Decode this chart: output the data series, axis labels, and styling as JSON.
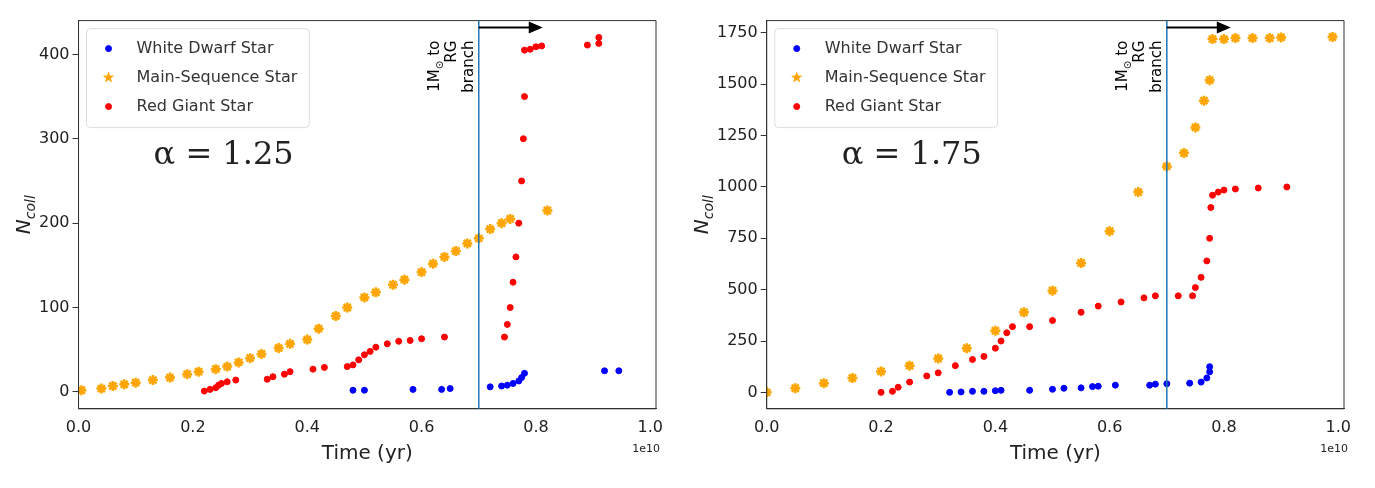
{
  "chart_data": [
    {
      "type": "scatter",
      "xlabel": "Time (yr)",
      "ylabel": "N$_{coll}$",
      "xlim": [
        0,
        1.01
      ],
      "ylim": [
        -20,
        440
      ],
      "xticks": [
        {
          "value": 0,
          "label": "0.0"
        },
        {
          "value": 0.2,
          "label": "0.2"
        },
        {
          "value": 0.4,
          "label": "0.4"
        },
        {
          "value": 0.6,
          "label": "0.6"
        },
        {
          "value": 0.8,
          "label": "0.8"
        },
        {
          "value": 1,
          "label": "1.0"
        }
      ],
      "yticks": [
        0,
        100,
        200,
        300,
        400
      ],
      "grid": false,
      "legend": "top left",
      "ref_lines": [
        {
          "axis": "x",
          "value": 0.7,
          "label": "1M$_{⊙}$ to RG branch",
          "color": "#1f77b4"
        }
      ],
      "annotations": [
        "α = 1.25",
        "1e10"
      ],
      "series": [
        {
          "name": "White Dwarf Star",
          "color": "#0000ff",
          "marker": "circle",
          "x": [
            0.48,
            0.5,
            0.585,
            0.635,
            0.65,
            0.72,
            0.74,
            0.75,
            0.76,
            0.77,
            0.775,
            0.78,
            0.92,
            0.945
          ],
          "values": [
            2,
            2,
            3,
            3,
            4,
            6,
            7,
            8,
            10,
            13,
            17,
            22,
            25,
            25
          ]
        },
        {
          "name": "Main-Sequence Star",
          "color": "#ffa500",
          "x": [
            0.005,
            0.04,
            0.06,
            0.08,
            0.1,
            0.13,
            0.16,
            0.19,
            0.21,
            0.24,
            0.26,
            0.28,
            0.3,
            0.32,
            0.35,
            0.37,
            0.4,
            0.42,
            0.45,
            0.47,
            0.5,
            0.52,
            0.55,
            0.57,
            0.6,
            0.62,
            0.64,
            0.66,
            0.68,
            0.7,
            0.72,
            0.74,
            0.755,
            0.82
          ],
          "values": [
            2,
            4,
            7,
            9,
            11,
            14,
            17,
            21,
            24,
            27,
            30,
            35,
            40,
            45,
            52,
            57,
            62,
            75,
            90,
            100,
            112,
            118,
            127,
            133,
            142,
            152,
            160,
            167,
            176,
            182,
            193,
            200,
            205,
            215
          ]
        },
        {
          "name": "Red Giant Star",
          "color": "#ff0000",
          "marker": "circle",
          "x": [
            0.22,
            0.23,
            0.24,
            0.245,
            0.25,
            0.26,
            0.275,
            0.33,
            0.34,
            0.36,
            0.37,
            0.41,
            0.43,
            0.47,
            0.48,
            0.49,
            0.5,
            0.51,
            0.52,
            0.54,
            0.56,
            0.58,
            0.6,
            0.64,
            0.745,
            0.75,
            0.755,
            0.76,
            0.765,
            0.77,
            0.775,
            0.778,
            0.78,
            0.78,
            0.79,
            0.8,
            0.81,
            0.89,
            0.91,
            0.91
          ],
          "values": [
            1,
            3,
            5,
            8,
            10,
            12,
            14,
            15,
            18,
            21,
            24,
            27,
            29,
            30,
            32,
            38,
            44,
            48,
            53,
            57,
            60,
            61,
            63,
            65,
            65,
            80,
            100,
            130,
            160,
            200,
            250,
            300,
            350,
            405,
            406,
            409,
            410,
            411,
            413,
            420
          ]
        }
      ]
    },
    {
      "type": "scatter",
      "xlabel": "Time (yr)",
      "ylabel": "N$_{coll}$",
      "xlim": [
        0,
        1.01
      ],
      "ylim": [
        -80,
        1810
      ],
      "xticks": [
        {
          "value": 0,
          "label": "0.0"
        },
        {
          "value": 0.2,
          "label": "0.2"
        },
        {
          "value": 0.4,
          "label": "0.4"
        },
        {
          "value": 0.6,
          "label": "0.6"
        },
        {
          "value": 0.8,
          "label": "0.8"
        },
        {
          "value": 1,
          "label": "1.0"
        }
      ],
      "yticks": [
        0,
        250,
        500,
        750,
        1000,
        1250,
        1500,
        1750
      ],
      "grid": false,
      "legend": "top left",
      "ref_lines": [
        {
          "axis": "x",
          "value": 0.7,
          "label": "1M$_{⊙}$ to RG branch",
          "color": "#1f77b4"
        }
      ],
      "annotations": [
        "α = 1.75",
        "1e10"
      ],
      "series": [
        {
          "name": "White Dwarf Star",
          "color": "#0000ff",
          "marker": "circle",
          "x": [
            0.32,
            0.34,
            0.36,
            0.38,
            0.4,
            0.41,
            0.46,
            0.5,
            0.52,
            0.55,
            0.57,
            0.58,
            0.61,
            0.67,
            0.68,
            0.7,
            0.74,
            0.76,
            0.77,
            0.775,
            0.775
          ],
          "values": [
            0,
            2,
            5,
            5,
            8,
            10,
            10,
            15,
            20,
            22,
            28,
            30,
            35,
            35,
            40,
            42,
            45,
            50,
            70,
            100,
            125
          ]
        },
        {
          "name": "Main-Sequence Star",
          "color": "#ffa500",
          "x": [
            0,
            0.05,
            0.1,
            0.15,
            0.2,
            0.25,
            0.3,
            0.35,
            0.4,
            0.45,
            0.5,
            0.55,
            0.6,
            0.65,
            0.7,
            0.73,
            0.75,
            0.765,
            0.775,
            0.78,
            0.8,
            0.82,
            0.85,
            0.88,
            0.9,
            0.99
          ],
          "values": [
            0,
            20,
            45,
            70,
            102,
            130,
            165,
            215,
            300,
            390,
            495,
            630,
            785,
            975,
            1100,
            1165,
            1290,
            1420,
            1520,
            1720,
            1720,
            1725,
            1725,
            1725,
            1728,
            1730
          ]
        },
        {
          "name": "Red Giant Star",
          "color": "#ff0000",
          "marker": "circle",
          "x": [
            0.2,
            0.22,
            0.23,
            0.25,
            0.28,
            0.3,
            0.33,
            0.36,
            0.38,
            0.4,
            0.41,
            0.42,
            0.43,
            0.46,
            0.5,
            0.55,
            0.58,
            0.62,
            0.66,
            0.68,
            0.72,
            0.745,
            0.75,
            0.76,
            0.77,
            0.775,
            0.777,
            0.78,
            0.79,
            0.8,
            0.82,
            0.86,
            0.91
          ],
          "values": [
            0,
            5,
            25,
            50,
            80,
            95,
            130,
            160,
            175,
            215,
            250,
            290,
            320,
            320,
            350,
            390,
            420,
            440,
            460,
            470,
            470,
            470,
            510,
            560,
            640,
            750,
            900,
            960,
            975,
            985,
            990,
            995,
            1000
          ]
        }
      ]
    }
  ]
}
